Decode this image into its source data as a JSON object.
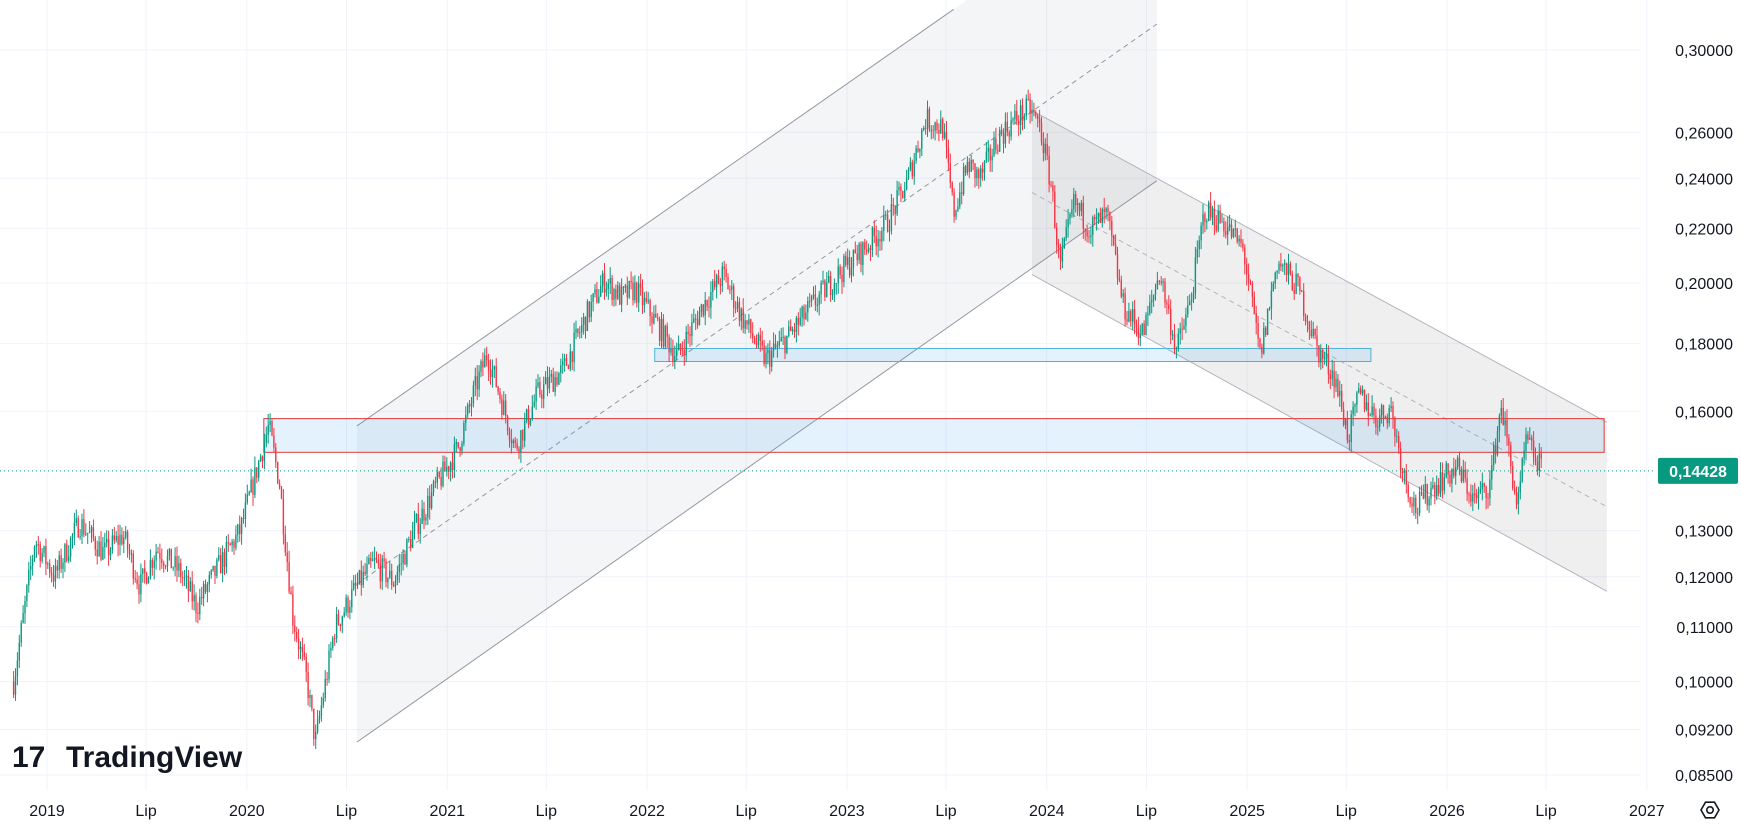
{
  "chart_data": {
    "type": "candlestick",
    "scale": "log",
    "grid": true,
    "y_ticks": [
      "0,30000",
      "0,26000",
      "0,24000",
      "0,22000",
      "0,20000",
      "0,18000",
      "0,16000",
      "0,13000",
      "0,12000",
      "0,11000",
      "0,10000",
      "0,09200",
      "0,08500"
    ],
    "x_ticks": [
      "2019",
      "Lip",
      "2020",
      "Lip",
      "2021",
      "Lip",
      "2022",
      "Lip",
      "2023",
      "Lip",
      "2024",
      "Lip",
      "2025",
      "Lip",
      "2026",
      "Lip",
      "2027"
    ],
    "last_price": "0,14428",
    "series": [
      {
        "points": [
          [
            "2018-11-01",
            0.1
          ],
          [
            "2018-12-10",
            0.128
          ],
          [
            "2019-01-15",
            0.12
          ],
          [
            "2019-03-01",
            0.132
          ],
          [
            "2019-04-15",
            0.125
          ],
          [
            "2019-05-20",
            0.129
          ],
          [
            "2019-06-20",
            0.118
          ],
          [
            "2019-07-20",
            0.126
          ],
          [
            "2019-09-01",
            0.121
          ],
          [
            "2019-10-01",
            0.114
          ],
          [
            "2019-11-10",
            0.122
          ],
          [
            "2019-12-20",
            0.13
          ],
          [
            "2020-02-10",
            0.156
          ],
          [
            "2020-03-01",
            0.141
          ],
          [
            "2020-03-25",
            0.112
          ],
          [
            "2020-04-20",
            0.1
          ],
          [
            "2020-05-05",
            0.09
          ],
          [
            "2020-06-10",
            0.11
          ],
          [
            "2020-07-20",
            0.118
          ],
          [
            "2020-08-20",
            0.123
          ],
          [
            "2020-09-25",
            0.119
          ],
          [
            "2020-11-01",
            0.13
          ],
          [
            "2020-12-10",
            0.14
          ],
          [
            "2021-01-20",
            0.15
          ],
          [
            "2021-02-20",
            0.166
          ],
          [
            "2021-03-15",
            0.177
          ],
          [
            "2021-04-20",
            0.158
          ],
          [
            "2021-05-05",
            0.15
          ],
          [
            "2021-06-15",
            0.165
          ],
          [
            "2021-08-01",
            0.172
          ],
          [
            "2021-09-15",
            0.19
          ],
          [
            "2021-10-15",
            0.201
          ],
          [
            "2021-11-15",
            0.195
          ],
          [
            "2021-12-10",
            0.198
          ],
          [
            "2022-01-20",
            0.186
          ],
          [
            "2022-02-25",
            0.176
          ],
          [
            "2022-04-15",
            0.193
          ],
          [
            "2022-05-20",
            0.203
          ],
          [
            "2022-06-25",
            0.188
          ],
          [
            "2022-08-05",
            0.175
          ],
          [
            "2022-09-15",
            0.182
          ],
          [
            "2022-11-01",
            0.193
          ],
          [
            "2022-12-15",
            0.203
          ],
          [
            "2023-02-01",
            0.212
          ],
          [
            "2023-03-15",
            0.222
          ],
          [
            "2023-04-20",
            0.238
          ],
          [
            "2023-05-25",
            0.266
          ],
          [
            "2023-06-25",
            0.262
          ],
          [
            "2023-07-15",
            0.226
          ],
          [
            "2023-08-10",
            0.246
          ],
          [
            "2023-09-01",
            0.24
          ],
          [
            "2023-10-05",
            0.258
          ],
          [
            "2023-11-05",
            0.266
          ],
          [
            "2023-12-01",
            0.271
          ],
          [
            "2023-12-20",
            0.262
          ],
          [
            "2024-01-10",
            0.236
          ],
          [
            "2024-01-25",
            0.205
          ],
          [
            "2024-02-20",
            0.23
          ],
          [
            "2024-03-20",
            0.22
          ],
          [
            "2024-04-20",
            0.225
          ],
          [
            "2024-05-20",
            0.192
          ],
          [
            "2024-06-25",
            0.183
          ],
          [
            "2024-07-25",
            0.204
          ],
          [
            "2024-08-25",
            0.178
          ],
          [
            "2024-09-20",
            0.194
          ],
          [
            "2024-10-15",
            0.227
          ],
          [
            "2024-11-20",
            0.222
          ],
          [
            "2024-12-25",
            0.212
          ],
          [
            "2025-01-25",
            0.176
          ],
          [
            "2025-02-25",
            0.208
          ],
          [
            "2025-04-05",
            0.198
          ],
          [
            "2025-05-10",
            0.178
          ],
          [
            "2025-06-10",
            0.17
          ],
          [
            "2025-07-05",
            0.153
          ],
          [
            "2025-07-25",
            0.165
          ],
          [
            "2025-08-25",
            0.158
          ],
          [
            "2025-09-20",
            0.161
          ],
          [
            "2025-10-15",
            0.143
          ],
          [
            "2025-11-05",
            0.135
          ],
          [
            "2025-12-10",
            0.141
          ],
          [
            "2026-01-20",
            0.145
          ],
          [
            "2026-02-20",
            0.137
          ],
          [
            "2026-03-20",
            0.141
          ],
          [
            "2026-04-10",
            0.162
          ],
          [
            "2026-04-25",
            0.148
          ],
          [
            "2026-05-10",
            0.135
          ],
          [
            "2026-05-25",
            0.152
          ],
          [
            "2026-06-10",
            0.148
          ],
          [
            "2026-06-25",
            0.144
          ]
        ]
      }
    ],
    "drawings": {
      "up_channel": {
        "upper": [
          [
            "2020-07-20",
            0.156
          ],
          [
            "2023-07-15",
            0.322
          ]
        ],
        "lower": [
          [
            "2020-07-20",
            0.09
          ],
          [
            "2024-07-20",
            0.239
          ]
        ],
        "shade_end": "2024-07-20"
      },
      "down_channel": {
        "upper": [
          [
            "2023-12-05",
            0.27
          ],
          [
            "2026-10-20",
            0.157
          ]
        ],
        "lower": [
          [
            "2023-12-05",
            0.203
          ],
          [
            "2026-10-20",
            0.117
          ]
        ]
      },
      "red_zone": {
        "x": [
          "2020-02-01",
          "2026-10-15"
        ],
        "y": [
          0.149,
          0.158
        ]
      },
      "blue_zone": {
        "x": [
          "2022-01-15",
          "2025-08-15"
        ],
        "y": [
          0.1745,
          0.1785
        ]
      }
    },
    "colors": {
      "up": "#089981",
      "down": "#f23645",
      "badge": "#089981",
      "red_zone_border": "#e03b3b",
      "blue_zone_border": "#4fb3d9"
    }
  },
  "brand": {
    "name": "TradingView",
    "mark": "17"
  }
}
